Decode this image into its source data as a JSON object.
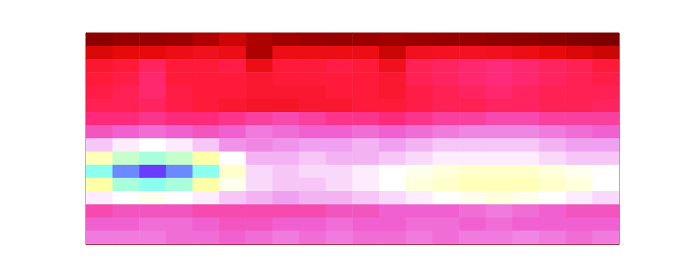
{
  "chart_data": {
    "type": "heatmap",
    "tick_labels": false,
    "zlim": [
      0,
      100
    ],
    "cells": [
      [
        6,
        8,
        8,
        9,
        12,
        16,
        12,
        10,
        9,
        8,
        9,
        10,
        9,
        8,
        8,
        7,
        6,
        5,
        4,
        3
      ],
      [
        18,
        20,
        20,
        22,
        24,
        22,
        12,
        22,
        22,
        22,
        22,
        16,
        24,
        25,
        25,
        24,
        22,
        20,
        18,
        16
      ],
      [
        28,
        30,
        36,
        30,
        30,
        32,
        22,
        30,
        30,
        32,
        30,
        24,
        34,
        36,
        38,
        40,
        38,
        36,
        34,
        30
      ],
      [
        30,
        32,
        38,
        30,
        30,
        30,
        28,
        30,
        30,
        30,
        30,
        28,
        34,
        36,
        38,
        40,
        38,
        36,
        34,
        32
      ],
      [
        32,
        34,
        38,
        32,
        30,
        30,
        28,
        28,
        28,
        30,
        30,
        28,
        32,
        34,
        36,
        38,
        36,
        34,
        34,
        34
      ],
      [
        34,
        34,
        36,
        32,
        30,
        28,
        26,
        26,
        28,
        28,
        30,
        30,
        32,
        34,
        34,
        36,
        36,
        34,
        34,
        36
      ],
      [
        40,
        40,
        42,
        40,
        40,
        42,
        44,
        46,
        44,
        42,
        42,
        40,
        42,
        44,
        44,
        46,
        46,
        44,
        44,
        44
      ],
      [
        48,
        50,
        52,
        50,
        48,
        50,
        54,
        52,
        50,
        50,
        52,
        50,
        52,
        54,
        56,
        56,
        56,
        54,
        52,
        50
      ],
      [
        64,
        68,
        70,
        68,
        64,
        58,
        56,
        58,
        60,
        60,
        62,
        60,
        62,
        64,
        64,
        64,
        64,
        62,
        60,
        60
      ],
      [
        78,
        84,
        86,
        84,
        80,
        70,
        62,
        62,
        64,
        62,
        62,
        64,
        66,
        68,
        68,
        68,
        68,
        66,
        64,
        64
      ],
      [
        88,
        96,
        100,
        96,
        88,
        76,
        66,
        64,
        66,
        66,
        68,
        70,
        72,
        74,
        76,
        76,
        76,
        74,
        72,
        70
      ],
      [
        80,
        86,
        88,
        86,
        80,
        72,
        66,
        64,
        64,
        66,
        68,
        70,
        74,
        76,
        78,
        78,
        78,
        76,
        74,
        70
      ],
      [
        68,
        70,
        72,
        70,
        68,
        64,
        62,
        60,
        62,
        62,
        64,
        66,
        68,
        70,
        72,
        74,
        72,
        70,
        68,
        66
      ],
      [
        46,
        48,
        48,
        48,
        46,
        46,
        46,
        46,
        46,
        48,
        48,
        50,
        50,
        50,
        52,
        54,
        52,
        50,
        48,
        48
      ],
      [
        50,
        50,
        52,
        52,
        50,
        48,
        48,
        50,
        50,
        52,
        50,
        50,
        52,
        52,
        50,
        52,
        50,
        50,
        50,
        50
      ],
      [
        54,
        54,
        54,
        52,
        52,
        50,
        52,
        54,
        52,
        54,
        52,
        52,
        54,
        52,
        54,
        54,
        56,
        54,
        52,
        54
      ]
    ]
  }
}
